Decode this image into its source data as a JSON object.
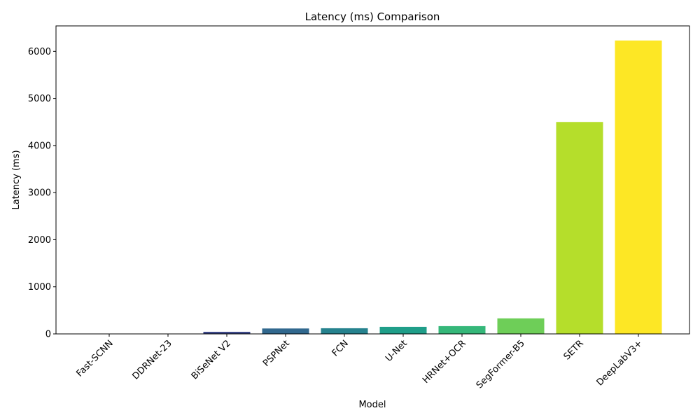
{
  "chart_data": {
    "type": "bar",
    "title": "Latency (ms) Comparison",
    "xlabel": "Model",
    "ylabel": "Latency (ms)",
    "categories": [
      "Fast-SCNN",
      "DDRNet-23",
      "BiSeNet V2",
      "PSPNet",
      "FCN",
      "U-Net",
      "HRNet+OCR",
      "SegFormer-B5",
      "SETR",
      "DeepLabV3+"
    ],
    "values": [
      3,
      6,
      45,
      115,
      120,
      150,
      165,
      330,
      4500,
      6230
    ],
    "colors": [
      "#440154",
      "#482878",
      "#3e4989",
      "#31688e",
      "#26828e",
      "#1f9e89",
      "#35b779",
      "#6ece58",
      "#b5de2b",
      "#fde725"
    ],
    "ylim": [
      0,
      6540
    ],
    "yticks": [
      0,
      1000,
      2000,
      3000,
      4000,
      5000,
      6000
    ],
    "grid": false,
    "legend": "none"
  }
}
